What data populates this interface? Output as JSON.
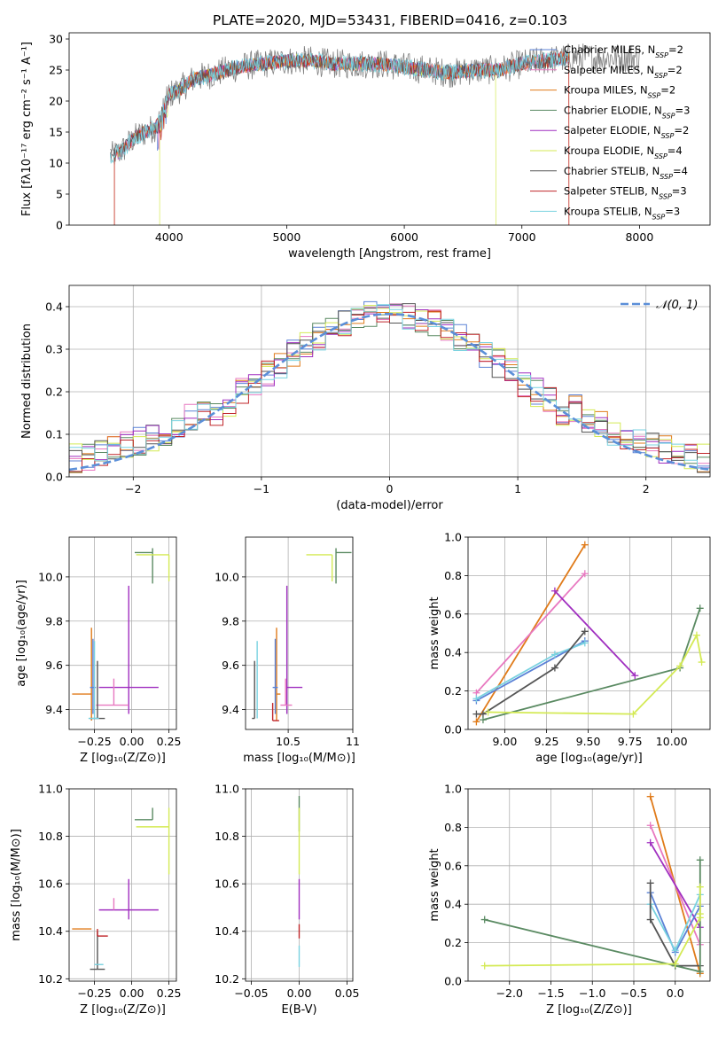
{
  "figure": {
    "title": "PLATE=2020, MJD=53431, FIBERID=0416, z=0.103"
  },
  "colors": {
    "Chabrier MILES": "#5b82d6",
    "Salpeter MILES": "#e878c0",
    "Kroupa MILES": "#e07b1a",
    "Chabrier ELODIE": "#5a8a62",
    "Salpeter ELODIE": "#a02fc0",
    "Kroupa ELODIE": "#d4ea55",
    "Chabrier STELIB": "#555555",
    "Salpeter STELIB": "#c0262a",
    "Kroupa STELIB": "#79d2e0",
    "gaussian": "#5b8fd8"
  },
  "chart_data": [
    {
      "id": "spectrum",
      "type": "line",
      "xlabel": "wavelength [Angstrom, rest frame]",
      "ylabel": "Flux [fλ10⁻¹⁷ erg cm⁻² s⁻¹ A⁻¹]",
      "xlim": [
        3150,
        8600
      ],
      "ylim": [
        0,
        31
      ],
      "xticks": [
        4000,
        5000,
        6000,
        7000,
        8000
      ],
      "yticks": [
        0,
        5,
        10,
        15,
        20,
        25,
        30
      ],
      "legend": "top-right",
      "legend_entries": [
        {
          "model": "Chabrier MILES",
          "label": "Chabrier MILES, N",
          "n": "2"
        },
        {
          "model": "Salpeter MILES",
          "label": "Salpeter MILES, N",
          "n": "2"
        },
        {
          "model": "Kroupa MILES",
          "label": "Kroupa MILES, N",
          "n": "2"
        },
        {
          "model": "Chabrier ELODIE",
          "label": "Chabrier ELODIE, N",
          "n": "3"
        },
        {
          "model": "Salpeter ELODIE",
          "label": "Salpeter ELODIE, N",
          "n": "2"
        },
        {
          "model": "Kroupa ELODIE",
          "label": "Kroupa ELODIE, N",
          "n": "4"
        },
        {
          "model": "Chabrier STELIB",
          "label": "Chabrier STELIB, N",
          "n": "4"
        },
        {
          "model": "Salpeter STELIB",
          "label": "Salpeter STELIB, N",
          "n": "3"
        },
        {
          "model": "Kroupa STELIB",
          "label": "Kroupa STELIB, N",
          "n": "3"
        }
      ],
      "legend_subscript": "SSP",
      "continuum": {
        "x": [
          3500,
          3600,
          3700,
          3800,
          3900,
          4000,
          4100,
          4200,
          4300,
          4400,
          4500,
          4600,
          4800,
          5000,
          5200,
          5400,
          5600,
          5800,
          6000,
          6200,
          6400,
          6600,
          6800,
          7000,
          7200,
          7400
        ],
        "y": [
          11,
          12,
          14,
          15,
          16,
          21,
          22,
          23.5,
          24,
          24.5,
          25,
          25.5,
          26,
          26.5,
          26.5,
          26,
          26,
          26,
          25.5,
          25,
          24.5,
          25,
          25,
          26,
          26.5,
          27
        ]
      },
      "dropouts": [
        {
          "model": "Kroupa MILES",
          "x": [
            3535,
            7400
          ]
        },
        {
          "model": "Salpeter STELIB",
          "x": [
            3535,
            7400
          ]
        },
        {
          "model": "Kroupa ELODIE",
          "x": [
            3920,
            6780
          ]
        }
      ]
    },
    {
      "id": "residuals",
      "type": "histogram",
      "xlabel": "(data-model)/error",
      "ylabel": "Normed distribution",
      "xlim": [
        -2.5,
        2.5
      ],
      "ylim": [
        0,
        0.45
      ],
      "xticks": [
        -2,
        -1,
        0,
        1,
        2
      ],
      "yticks": [
        0.0,
        0.1,
        0.2,
        0.3,
        0.4
      ],
      "legend": "top-right",
      "legend_label": "𝒩(0, 1)",
      "bin_width": 0.1,
      "peak_height": 0.37
    },
    {
      "id": "age-vs-Z",
      "type": "scatter",
      "xlabel": "Z [log₁₀(Z/Z⊙)]",
      "ylabel": "age  [log₁₀(age/yr)]",
      "xlim": [
        -0.42,
        0.3
      ],
      "ylim": [
        9.31,
        10.18
      ],
      "xticks": [
        -0.25,
        0.0,
        0.25
      ],
      "yticks": [
        9.4,
        9.6,
        9.8,
        10.0
      ],
      "points": [
        {
          "model": "Chabrier ELODIE",
          "x": 0.14,
          "y": 10.11,
          "xerr": [
            0.12,
            0.0
          ],
          "yerr": [
            0.14,
            0.02
          ]
        },
        {
          "model": "Kroupa ELODIE",
          "x": 0.25,
          "y": 10.1,
          "xerr": [
            0.22,
            0.0
          ],
          "yerr": [
            0.12,
            0.0
          ]
        },
        {
          "model": "Salpeter ELODIE",
          "x": -0.02,
          "y": 9.5,
          "xerr": [
            0.2,
            0.2
          ],
          "yerr": [
            0.12,
            0.46
          ]
        },
        {
          "model": "Salpeter MILES",
          "x": -0.12,
          "y": 9.42,
          "xerr": [
            0.12,
            0.1
          ],
          "yerr": [
            0.0,
            0.12
          ]
        },
        {
          "model": "Kroupa MILES",
          "x": -0.27,
          "y": 9.47,
          "xerr": [
            0.13,
            0.0
          ],
          "yerr": [
            0.12,
            0.3
          ]
        },
        {
          "model": "Chabrier MILES",
          "x": -0.26,
          "y": 9.5,
          "xerr": [
            0.02,
            0.02
          ],
          "yerr": [
            0.12,
            0.22
          ]
        },
        {
          "model": "Chabrier STELIB",
          "x": -0.23,
          "y": 9.36,
          "xerr": [
            0.05,
            0.05
          ],
          "yerr": [
            0.0,
            0.26
          ]
        },
        {
          "model": "Kroupa STELIB",
          "x": -0.25,
          "y": 9.36,
          "xerr": [
            0.04,
            0.03
          ],
          "yerr": [
            0.0,
            0.35
          ]
        }
      ]
    },
    {
      "id": "age-vs-mass",
      "type": "scatter",
      "xlabel": "mass [log₁₀(M/M⊙)]",
      "ylabel": "",
      "xlim": [
        10.17,
        11.0
      ],
      "ylim": [
        9.31,
        10.18
      ],
      "xticks": [
        10.5,
        11.0
      ],
      "yticks": [
        9.4,
        9.6,
        9.8,
        10.0
      ],
      "points": [
        {
          "model": "Chabrier ELODIE",
          "x": 10.87,
          "y": 10.11,
          "xerr": [
            0.0,
            0.12
          ],
          "yerr": [
            0.14,
            0.02
          ]
        },
        {
          "model": "Kroupa ELODIE",
          "x": 10.84,
          "y": 10.1,
          "xerr": [
            0.2,
            0.0
          ],
          "yerr": [
            0.12,
            0.0
          ]
        },
        {
          "model": "Salpeter ELODIE",
          "x": 10.49,
          "y": 9.5,
          "xerr": [
            0.0,
            0.12
          ],
          "yerr": [
            0.12,
            0.46
          ]
        },
        {
          "model": "Salpeter MILES",
          "x": 10.48,
          "y": 9.42,
          "xerr": [
            0.04,
            0.05
          ],
          "yerr": [
            0.0,
            0.12
          ]
        },
        {
          "model": "Kroupa MILES",
          "x": 10.41,
          "y": 9.47,
          "xerr": [
            0.0,
            0.03
          ],
          "yerr": [
            0.12,
            0.3
          ]
        },
        {
          "model": "Chabrier MILES",
          "x": 10.4,
          "y": 9.5,
          "xerr": [
            0.02,
            0.02
          ],
          "yerr": [
            0.12,
            0.22
          ]
        },
        {
          "model": "Chabrier STELIB",
          "x": 10.24,
          "y": 9.36,
          "xerr": [
            0.02,
            0.0
          ],
          "yerr": [
            0.0,
            0.26
          ]
        },
        {
          "model": "Salpeter STELIB",
          "x": 10.38,
          "y": 9.35,
          "xerr": [
            0.0,
            0.05
          ],
          "yerr": [
            0.0,
            0.08
          ]
        },
        {
          "model": "Kroupa STELIB",
          "x": 10.26,
          "y": 9.36,
          "xerr": [
            0.0,
            0.0
          ],
          "yerr": [
            0.0,
            0.35
          ]
        }
      ]
    },
    {
      "id": "weight-vs-age",
      "type": "line",
      "xlabel": "age  [log₁₀(age/yr)]",
      "ylabel": "mass weight",
      "xlim": [
        8.78,
        10.23
      ],
      "ylim": [
        0.0,
        1.0
      ],
      "xticks": [
        9.0,
        9.25,
        9.5,
        9.75,
        10.0
      ],
      "yticks": [
        0.0,
        0.2,
        0.4,
        0.6,
        0.8,
        1.0
      ],
      "series": [
        {
          "model": "Kroupa MILES",
          "x": [
            8.83,
            9.48
          ],
          "y": [
            0.04,
            0.96
          ]
        },
        {
          "model": "Salpeter MILES",
          "x": [
            8.83,
            9.48
          ],
          "y": [
            0.19,
            0.81
          ]
        },
        {
          "model": "Salpeter ELODIE",
          "x": [
            9.3,
            9.78
          ],
          "y": [
            0.72,
            0.28
          ]
        },
        {
          "model": "Chabrier MILES",
          "x": [
            8.83,
            9.48
          ],
          "y": [
            0.15,
            0.46
          ]
        },
        {
          "model": "Kroupa STELIB",
          "x": [
            8.83,
            9.3,
            9.48
          ],
          "y": [
            0.16,
            0.39,
            0.45
          ]
        },
        {
          "model": "Chabrier STELIB",
          "x": [
            8.83,
            8.87,
            9.3,
            9.48
          ],
          "y": [
            0.08,
            0.08,
            0.32,
            0.51
          ]
        },
        {
          "model": "Chabrier ELODIE",
          "x": [
            8.87,
            10.05,
            10.17
          ],
          "y": [
            0.05,
            0.32,
            0.63
          ]
        },
        {
          "model": "Kroupa ELODIE",
          "x": [
            8.9,
            9.77,
            10.05,
            10.15,
            10.18
          ],
          "y": [
            0.09,
            0.08,
            0.33,
            0.49,
            0.35
          ]
        }
      ]
    },
    {
      "id": "mass-vs-Z",
      "type": "scatter",
      "xlabel": "Z [log₁₀(Z/Z⊙)]",
      "ylabel": "mass [log₁₀(M/M⊙)]",
      "xlim": [
        -0.42,
        0.3
      ],
      "ylim": [
        10.19,
        11.0
      ],
      "xticks": [
        -0.25,
        0.0,
        0.25
      ],
      "yticks": [
        10.2,
        10.4,
        10.6,
        10.8,
        11.0
      ],
      "points": [
        {
          "model": "Chabrier ELODIE",
          "x": 0.14,
          "y": 10.87,
          "xerr": [
            0.12,
            0.0
          ],
          "yerr": [
            0.0,
            0.05
          ]
        },
        {
          "model": "Kroupa ELODIE",
          "x": 0.25,
          "y": 10.84,
          "xerr": [
            0.22,
            0.0
          ],
          "yerr": [
            0.2,
            0.08
          ]
        },
        {
          "model": "Salpeter ELODIE",
          "x": -0.02,
          "y": 10.49,
          "xerr": [
            0.2,
            0.2
          ],
          "yerr": [
            0.04,
            0.13
          ]
        },
        {
          "model": "Salpeter MILES",
          "x": -0.12,
          "y": 10.49,
          "xerr": [
            0.0,
            0.0
          ],
          "yerr": [
            0.0,
            0.05
          ]
        },
        {
          "model": "Kroupa MILES",
          "x": -0.27,
          "y": 10.41,
          "xerr": [
            0.13,
            0.0
          ],
          "yerr": [
            0.0,
            0.0
          ]
        },
        {
          "model": "Chabrier MILES",
          "x": -0.26,
          "y": 10.4,
          "xerr": [
            0.0,
            0.0
          ],
          "yerr": [
            0.0,
            0.0
          ]
        },
        {
          "model": "Chabrier STELIB",
          "x": -0.23,
          "y": 10.24,
          "xerr": [
            0.05,
            0.05
          ],
          "yerr": [
            0.0,
            0.16
          ]
        },
        {
          "model": "Salpeter STELIB",
          "x": -0.23,
          "y": 10.38,
          "xerr": [
            0.0,
            0.07
          ],
          "yerr": [
            0.0,
            0.03
          ]
        },
        {
          "model": "Kroupa STELIB",
          "x": -0.25,
          "y": 10.26,
          "xerr": [
            0.0,
            0.06
          ],
          "yerr": [
            0.0,
            0.0
          ]
        }
      ]
    },
    {
      "id": "mass-vs-ebv",
      "type": "scatter",
      "xlabel": "E(B-V)",
      "ylabel": "",
      "xlim": [
        -0.056,
        0.056
      ],
      "ylim": [
        10.19,
        11.0
      ],
      "xticks": [
        -0.05,
        0.0,
        0.05
      ],
      "yticks": [
        10.2,
        10.4,
        10.6,
        10.8,
        11.0
      ],
      "points": [
        {
          "model": "Chabrier ELODIE",
          "x": 0.0,
          "y": 10.87,
          "xerr": [
            0,
            0
          ],
          "yerr": [
            0.05,
            0.1
          ]
        },
        {
          "model": "Kroupa ELODIE",
          "x": 0.0,
          "y": 10.84,
          "xerr": [
            0,
            0
          ],
          "yerr": [
            0.2,
            0.08
          ]
        },
        {
          "model": "Salpeter ELODIE",
          "x": 0.0,
          "y": 10.49,
          "xerr": [
            0,
            0
          ],
          "yerr": [
            0.04,
            0.13
          ]
        },
        {
          "model": "Salpeter STELIB",
          "x": 0.0,
          "y": 10.4,
          "xerr": [
            0,
            0
          ],
          "yerr": [
            0.03,
            0.03
          ]
        },
        {
          "model": "Kroupa STELIB",
          "x": 0.0,
          "y": 10.28,
          "xerr": [
            0,
            0
          ],
          "yerr": [
            0.03,
            0.06
          ]
        }
      ]
    },
    {
      "id": "weight-vs-Z",
      "type": "line",
      "xlabel": "Z [log₁₀(Z/Z⊙)]",
      "ylabel": "mass weight",
      "xlim": [
        -2.5,
        0.42
      ],
      "ylim": [
        0.0,
        1.0
      ],
      "xticks": [
        -2.0,
        -1.5,
        -1.0,
        -0.5,
        0.0
      ],
      "yticks": [
        0.0,
        0.2,
        0.4,
        0.6,
        0.8,
        1.0
      ],
      "series": [
        {
          "model": "Kroupa MILES",
          "x": [
            -0.3,
            0.3
          ],
          "y": [
            0.96,
            0.04
          ]
        },
        {
          "model": "Salpeter MILES",
          "x": [
            -0.3,
            0.3
          ],
          "y": [
            0.81,
            0.19
          ]
        },
        {
          "model": "Salpeter ELODIE",
          "x": [
            -0.3,
            0.3
          ],
          "y": [
            0.72,
            0.28
          ]
        },
        {
          "model": "Chabrier MILES",
          "x": [
            -0.3,
            0.0,
            0.3
          ],
          "y": [
            0.46,
            0.15,
            0.39
          ]
        },
        {
          "model": "Kroupa STELIB",
          "x": [
            -0.3,
            0.0,
            0.3
          ],
          "y": [
            0.4,
            0.16,
            0.45
          ]
        },
        {
          "model": "Chabrier STELIB",
          "x": [
            -0.3,
            -0.3,
            0.0,
            0.3
          ],
          "y": [
            0.51,
            0.32,
            0.08,
            0.08
          ]
        },
        {
          "model": "Chabrier ELODIE",
          "x": [
            -2.3,
            0.0,
            0.3,
            0.3
          ],
          "y": [
            0.32,
            0.08,
            0.05,
            0.63
          ]
        },
        {
          "model": "Kroupa ELODIE",
          "x": [
            -2.3,
            0.0,
            0.3,
            0.3,
            0.3
          ],
          "y": [
            0.08,
            0.09,
            0.33,
            0.49,
            0.35
          ]
        }
      ]
    }
  ]
}
